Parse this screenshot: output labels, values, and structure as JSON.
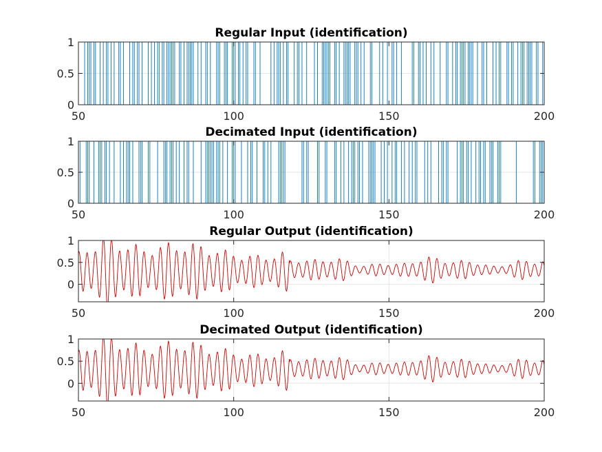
{
  "chart_data": [
    {
      "type": "line",
      "kind": "binary",
      "title": "Regular Input (identification)",
      "xlim": [
        50,
        200
      ],
      "ylim": [
        0,
        1
      ],
      "xticks": [
        50,
        100,
        150,
        200
      ],
      "yticks": [
        0,
        0.5,
        1
      ],
      "xtick_labels": [
        "50",
        "100",
        "150",
        "200"
      ],
      "ytick_labels": [
        "0",
        "0.5",
        "1"
      ],
      "grid": true,
      "series": [
        {
          "color": "#0072BD",
          "seed": 11,
          "samples_per_unit": 2
        }
      ]
    },
    {
      "type": "line",
      "kind": "binary",
      "title": "Decimated Input (identification)",
      "xlim": [
        50,
        200
      ],
      "ylim": [
        0,
        1
      ],
      "xticks": [
        50,
        100,
        150,
        200
      ],
      "yticks": [
        0,
        0.5,
        1
      ],
      "xtick_labels": [
        "50",
        "100",
        "150",
        "200"
      ],
      "ytick_labels": [
        "0",
        "0.5",
        "1"
      ],
      "grid": true,
      "series": [
        {
          "color": "#0072BD",
          "seed": 29,
          "samples_per_unit": 2
        }
      ]
    },
    {
      "type": "line",
      "kind": "oscillation",
      "title": "Regular Output (identification)",
      "xlim": [
        50,
        200
      ],
      "ylim": [
        -0.4,
        1
      ],
      "xticks": [
        50,
        100,
        150,
        200
      ],
      "yticks": [
        0,
        0.5,
        1
      ],
      "xtick_labels": [
        "50",
        "100",
        "150",
        "200"
      ],
      "ytick_labels": [
        "0",
        "0.5",
        "1"
      ],
      "grid": true,
      "series": [
        {
          "color": "#CC0000"
        }
      ]
    },
    {
      "type": "line",
      "kind": "oscillation",
      "title": "Decimated Output (identification)",
      "xlim": [
        50,
        200
      ],
      "ylim": [
        -0.4,
        1
      ],
      "xticks": [
        50,
        100,
        150,
        200
      ],
      "yticks": [
        0,
        0.5,
        1
      ],
      "xtick_labels": [
        "50",
        "100",
        "150",
        "200"
      ],
      "ytick_labels": [
        "0",
        "0.5",
        "1"
      ],
      "grid": true,
      "series": [
        {
          "color": "#CC0000"
        }
      ]
    }
  ]
}
